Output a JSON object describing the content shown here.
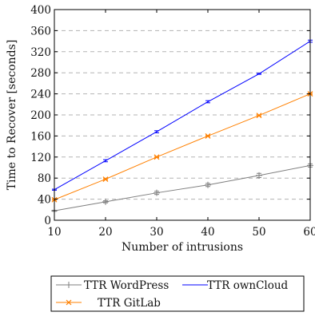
{
  "chart_data": {
    "type": "line",
    "xlabel": "Number of intrusions",
    "ylabel": "Time to Recover [seconds]",
    "xlim": [
      10,
      60
    ],
    "ylim": [
      0,
      400
    ],
    "x_ticks": [
      "10",
      "20",
      "30",
      "40",
      "50",
      "60"
    ],
    "y_ticks": [
      "0",
      "40",
      "80",
      "120",
      "160",
      "200",
      "240",
      "280",
      "320",
      "360",
      "400"
    ],
    "grid": "horizontal dashed",
    "legend_position": "below",
    "x": [
      10,
      20,
      30,
      40,
      50,
      60
    ],
    "series": [
      {
        "name": "TTR WordPress",
        "color": "#7f7f7f",
        "marker": "plus",
        "values": [
          18,
          35,
          52,
          67,
          85,
          104
        ],
        "errors": [
          1,
          2,
          3,
          3,
          4,
          3
        ]
      },
      {
        "name": "TTR ownCloud",
        "color": "#0000ff",
        "marker": "none",
        "values": [
          58,
          113,
          168,
          225,
          278,
          340
        ],
        "errors": [
          1,
          2,
          2,
          2,
          1,
          2
        ]
      },
      {
        "name": "TTR GitLab",
        "color": "#ff8000",
        "marker": "cross",
        "values": [
          39,
          78,
          120,
          160,
          199,
          240
        ],
        "errors": [
          1,
          1,
          1,
          1,
          1,
          1
        ]
      }
    ]
  }
}
